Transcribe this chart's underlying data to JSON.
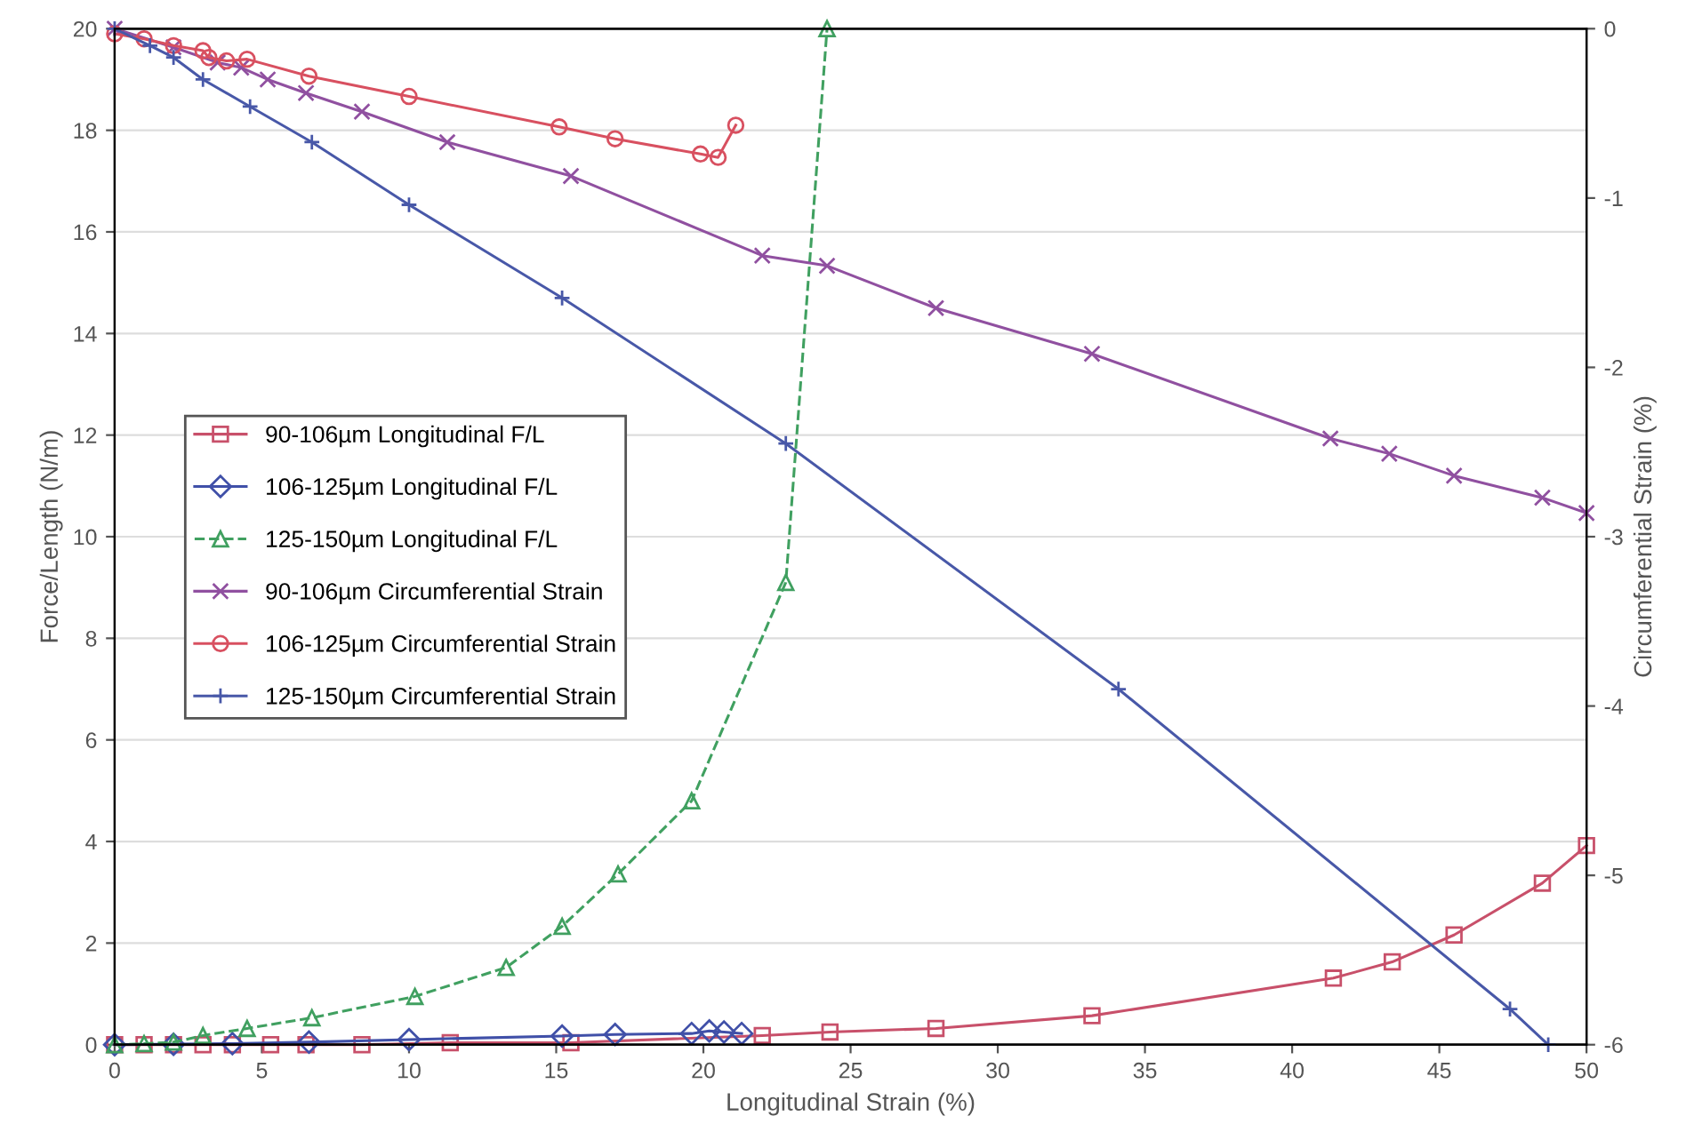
{
  "chart_data": {
    "type": "line",
    "xlabel": "Longitudinal Strain (%)",
    "ylabel": "Force/Length (N/m)",
    "y2label": "Circumferential Strain (%)",
    "xlim": [
      0,
      50
    ],
    "xticks": [
      0,
      5,
      10,
      15,
      20,
      25,
      30,
      35,
      40,
      45,
      50
    ],
    "ylim": [
      0,
      20
    ],
    "yticks": [
      0,
      2,
      4,
      6,
      8,
      10,
      12,
      14,
      16,
      18,
      20
    ],
    "y2lim": [
      -6,
      0
    ],
    "y2ticks": [
      -6,
      -5,
      -4,
      -3,
      -2,
      -1,
      0
    ],
    "grid": "y",
    "legend": "left",
    "series": [
      {
        "name": "90-106µm Longitudinal F/L",
        "color": "#c8506a",
        "marker": "square",
        "line_style": "solid",
        "x": [
          0,
          1,
          2,
          3,
          4,
          5.3,
          6.5,
          8.4,
          11.4,
          15.5,
          22.0,
          24.3,
          27.9,
          33.2,
          41.4,
          43.4,
          45.5,
          48.5,
          50
        ],
        "values": [
          0,
          0,
          0,
          0,
          0,
          0,
          0,
          0,
          0.04,
          0.04,
          0.18,
          0.25,
          0.32,
          0.57,
          1.31,
          1.63,
          2.16,
          3.18,
          3.92
        ]
      },
      {
        "name": "106-125µm Longitudinal F/L",
        "color": "#4050a8",
        "marker": "diamond",
        "line_style": "solid",
        "x": [
          0,
          2,
          4,
          6.6,
          10,
          15.2,
          17,
          19.6,
          20.2,
          20.7,
          21.3
        ],
        "values": [
          0,
          0.01,
          0.02,
          0.05,
          0.1,
          0.17,
          0.2,
          0.22,
          0.27,
          0.25,
          0.22
        ]
      },
      {
        "name": "125-150µm Longitudinal F/L",
        "color": "#40a060",
        "marker": "triangle",
        "line_style": "dashed",
        "x": [
          0,
          1,
          2,
          3.0,
          4.5,
          6.7,
          10.2,
          13.3,
          15.2,
          17.1,
          19.6,
          22.8,
          24.2
        ],
        "values": [
          0,
          0.02,
          0.05,
          0.18,
          0.32,
          0.53,
          0.95,
          1.52,
          2.33,
          3.36,
          4.8,
          9.1,
          20
        ]
      },
      {
        "name": "90-106µm Circumferential Strain",
        "color": "#9050a0",
        "marker": "cross",
        "line_style": "solid",
        "axis": "y2",
        "x": [
          0,
          2.0,
          3.5,
          4.3,
          5.2,
          6.5,
          8.4,
          11.3,
          15.5,
          22.0,
          24.2,
          27.9,
          33.2,
          41.3,
          43.3,
          45.5,
          48.5,
          50
        ],
        "values": [
          0,
          -0.11,
          -0.2,
          -0.23,
          -0.3,
          -0.38,
          -0.49,
          -0.67,
          -0.87,
          -1.34,
          -1.4,
          -1.65,
          -1.92,
          -2.42,
          -2.51,
          -2.64,
          -2.77,
          -2.86
        ]
      },
      {
        "name": "106-125µm Circumferential Strain",
        "color": "#d85060",
        "marker": "circle",
        "line_style": "solid",
        "axis": "y2",
        "x": [
          0,
          1.0,
          2.0,
          3.0,
          3.2,
          3.8,
          4.5,
          6.6,
          10.0,
          15.1,
          17.0,
          19.9,
          20.5,
          21.1
        ],
        "values": [
          -0.03,
          -0.06,
          -0.1,
          -0.13,
          -0.17,
          -0.19,
          -0.18,
          -0.28,
          -0.4,
          -0.58,
          -0.65,
          -0.74,
          -0.76,
          -0.57
        ]
      },
      {
        "name": "125-150µm Circumferential Strain",
        "color": "#4858a8",
        "marker": "plus",
        "line_style": "solid",
        "axis": "y2",
        "x": [
          0,
          1.2,
          2.0,
          3.0,
          4.6,
          6.7,
          10.0,
          15.2,
          22.8,
          34.1,
          47.4,
          48.7
        ],
        "values": [
          0,
          -0.1,
          -0.17,
          -0.3,
          -0.46,
          -0.67,
          -1.04,
          -1.59,
          -2.45,
          -3.9,
          -5.79,
          -6.0
        ]
      }
    ]
  }
}
